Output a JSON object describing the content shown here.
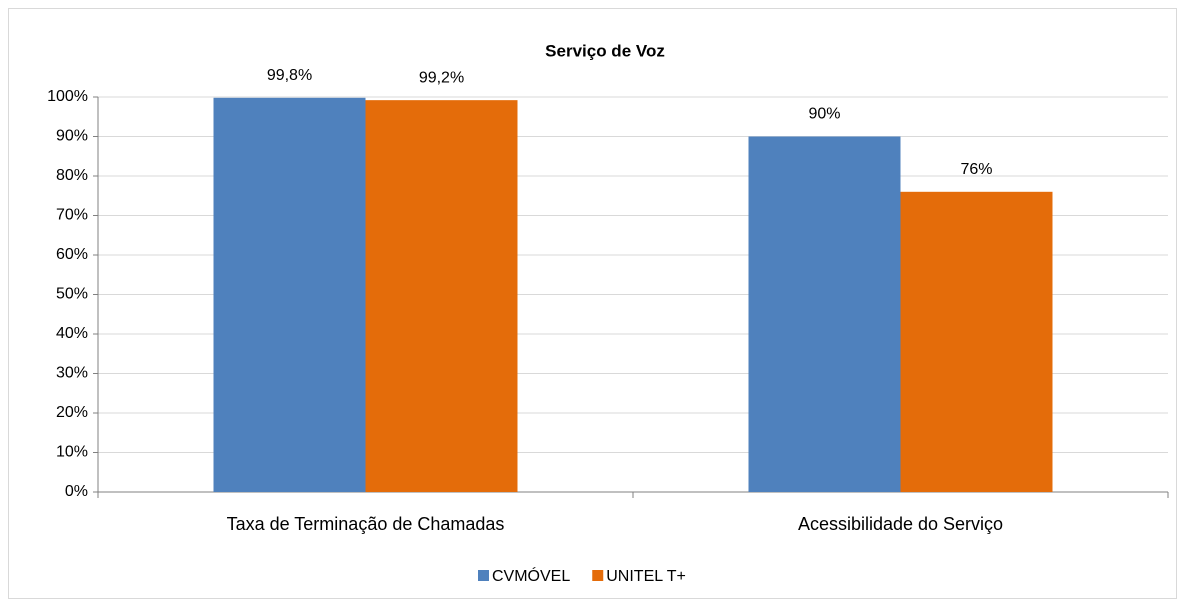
{
  "chart_data": {
    "type": "bar",
    "title": "Serviço de Voz",
    "categories": [
      "Taxa de Terminação de Chamadas",
      "Acessibilidade do Serviço"
    ],
    "series": [
      {
        "name": "CVMÓVEL",
        "color": "#4f81bd",
        "values": [
          99.8,
          90
        ],
        "value_labels": [
          "99,8%",
          "90%"
        ]
      },
      {
        "name": "UNITEL T+",
        "color": "#e46c0a",
        "values": [
          99.2,
          76
        ],
        "value_labels": [
          "99,2%",
          "76%"
        ]
      }
    ],
    "ylim": [
      0,
      100
    ],
    "yticks": [
      {
        "value": 0,
        "label": "0%"
      },
      {
        "value": 10,
        "label": "10%"
      },
      {
        "value": 20,
        "label": "20%"
      },
      {
        "value": 30,
        "label": "30%"
      },
      {
        "value": 40,
        "label": "40%"
      },
      {
        "value": 50,
        "label": "50%"
      },
      {
        "value": 60,
        "label": "60%"
      },
      {
        "value": 70,
        "label": "70%"
      },
      {
        "value": 80,
        "label": "80%"
      },
      {
        "value": 90,
        "label": "90%"
      },
      {
        "value": 100,
        "label": "100%"
      }
    ],
    "grid": true,
    "legend": "bottom"
  }
}
